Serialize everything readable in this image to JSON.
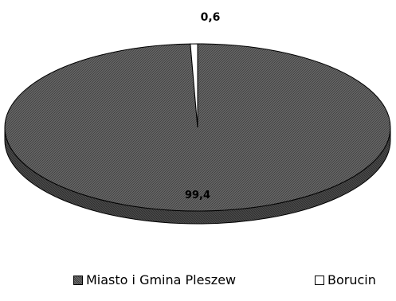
{
  "chart_data": {
    "type": "pie",
    "categories": [
      "Miasto i Gmina Pleszew",
      "Borucin"
    ],
    "values": [
      99.4,
      0.6
    ],
    "data_labels": [
      "99,4",
      "0,6"
    ],
    "colors": {
      "Miasto i Gmina Pleszew": "#5a5a5a",
      "Borucin": "#ffffff",
      "outline": "#000000"
    },
    "style": "3d-pie-hatched",
    "legend_position": "bottom",
    "legend": [
      "Miasto i Gmina Pleszew",
      "Borucin"
    ]
  }
}
